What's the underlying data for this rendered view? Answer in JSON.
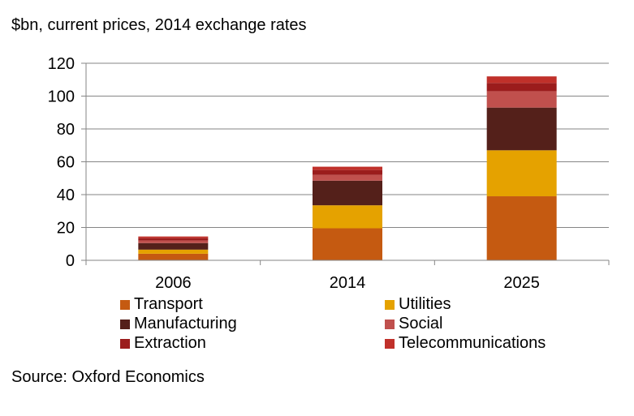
{
  "unit_label": "$bn, current prices, 2014 exchange rates",
  "source": "Source: Oxford Economics",
  "chart_data": {
    "type": "bar",
    "stacked": true,
    "categories": [
      "2006",
      "2014",
      "2025"
    ],
    "ylim": [
      0,
      120
    ],
    "yticks": [
      0,
      20,
      40,
      60,
      80,
      100,
      120
    ],
    "gridlines": true,
    "legend_position": "bottom",
    "series": [
      {
        "name": "Transport",
        "color": "#c55a11",
        "values": [
          4,
          19.5,
          39
        ]
      },
      {
        "name": "Utilities",
        "color": "#e5a200",
        "values": [
          2.5,
          14,
          28
        ]
      },
      {
        "name": "Manufacturing",
        "color": "#54201a",
        "values": [
          4,
          15,
          26
        ]
      },
      {
        "name": "Social",
        "color": "#c0504d",
        "values": [
          1.5,
          3.5,
          10
        ]
      },
      {
        "name": "Extraction",
        "color": "#9b1c1c",
        "values": [
          1.5,
          3,
          5
        ]
      },
      {
        "name": "Telecommunications",
        "color": "#c0302a",
        "values": [
          1,
          2,
          4
        ]
      }
    ]
  }
}
